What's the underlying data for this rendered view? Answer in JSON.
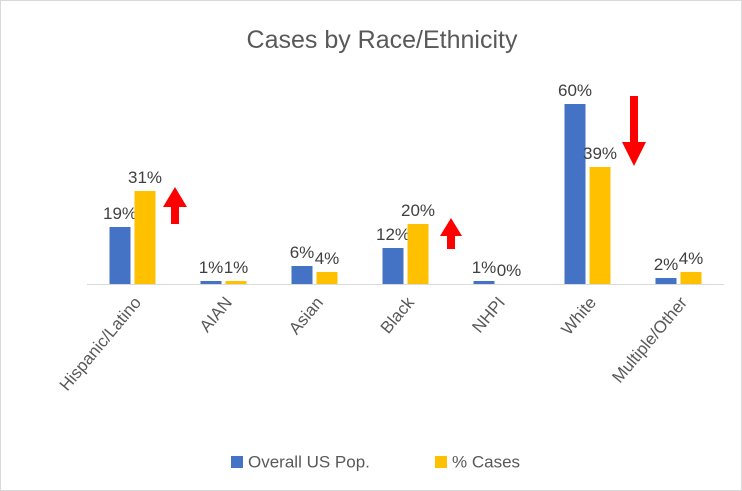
{
  "chart_data": {
    "type": "bar",
    "title": "Cases by Race/Ethnicity",
    "categories": [
      "Hispanic/Latino",
      "AIAN",
      "Asian",
      "Black",
      "NHPI",
      "White",
      "Multiple/Other"
    ],
    "series": [
      {
        "name": "Overall US Pop.",
        "color": "#4472c4",
        "values": [
          19,
          1,
          6,
          12,
          1,
          60,
          2
        ],
        "value_labels": [
          "19%",
          "1%",
          "6%",
          "12%",
          "1%",
          "60%",
          "2%"
        ]
      },
      {
        "name": "% Cases",
        "color": "#ffc000",
        "values": [
          31,
          1,
          4,
          20,
          0,
          39,
          4
        ],
        "value_labels": [
          "31%",
          "1%",
          "4%",
          "20%",
          "0%",
          "39%",
          "4%"
        ]
      }
    ],
    "legend": "bottom"
  }
}
